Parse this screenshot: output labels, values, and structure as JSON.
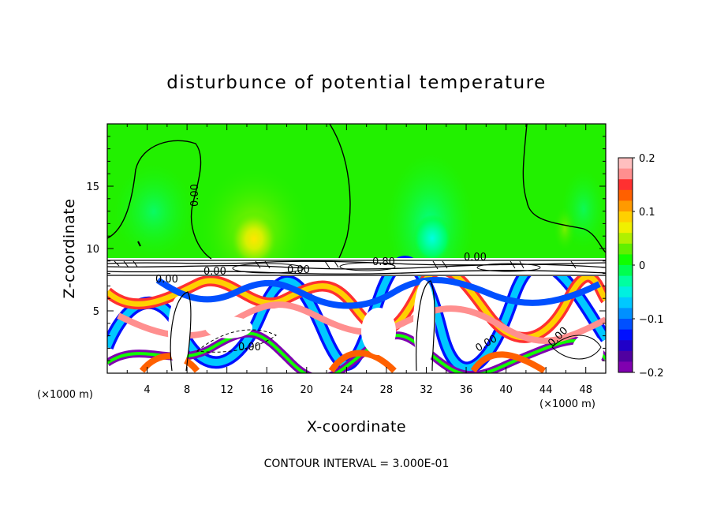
{
  "chart_data": {
    "type": "heatmap",
    "title": "disturbunce of potential temperature",
    "xlabel": "X-coordinate",
    "ylabel": "Z-coordinate",
    "x_unit_left": "(×1000 m)",
    "x_unit_right": "(×1000 m)",
    "xlim": [
      0,
      50
    ],
    "ylim": [
      0,
      20
    ],
    "x_ticks": [
      "4",
      "8",
      "12",
      "16",
      "20",
      "24",
      "28",
      "32",
      "36",
      "40",
      "44",
      "48"
    ],
    "y_ticks": [
      "5",
      "10",
      "15"
    ],
    "colorbar": {
      "min": -0.2,
      "max": 0.2,
      "ticks": [
        "0.2",
        "0.1",
        "0",
        "−0.1",
        "−0.2"
      ],
      "colors_top_to_bottom": [
        "#ffbfbf",
        "#ff8f8f",
        "#ff3030",
        "#ff6000",
        "#ff9a00",
        "#ffd000",
        "#f0f000",
        "#b0f000",
        "#60f000",
        "#10ff00",
        "#00ff50",
        "#00ffa0",
        "#00f0e0",
        "#00c8ff",
        "#0090ff",
        "#0050ff",
        "#0010ff",
        "#2000c8",
        "#5000a0",
        "#8000b0"
      ]
    },
    "contour_labels": [
      "0.00",
      "0.00",
      "0.00",
      "0.00",
      "0.00",
      "0.80",
      "0.00",
      "0.00",
      "0.00"
    ],
    "contour_interval_text": "CONTOUR INTERVAL = 3.000E-01"
  }
}
